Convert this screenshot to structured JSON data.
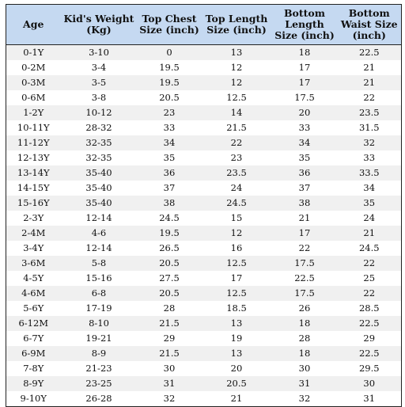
{
  "table": {
    "headers": [
      "Age",
      "Kid's Weight (Kg)",
      "Top Chest Size (inch)",
      "Top Length Size (inch)",
      "Bottom Length Size (inch)",
      "Bottom Waist Size (inch)"
    ],
    "rows": [
      [
        "0-1Y",
        "3-10",
        "0",
        "13",
        "18",
        "22.5"
      ],
      [
        "0-2M",
        "3-4",
        "19.5",
        "12",
        "17",
        "21"
      ],
      [
        "0-3M",
        "3-5",
        "19.5",
        "12",
        "17",
        "21"
      ],
      [
        "0-6M",
        "3-8",
        "20.5",
        "12.5",
        "17.5",
        "22"
      ],
      [
        "1-2Y",
        "10-12",
        "23",
        "14",
        "20",
        "23.5"
      ],
      [
        "10-11Y",
        "28-32",
        "33",
        "21.5",
        "33",
        "31.5"
      ],
      [
        "11-12Y",
        "32-35",
        "34",
        "22",
        "34",
        "32"
      ],
      [
        "12-13Y",
        "32-35",
        "35",
        "23",
        "35",
        "33"
      ],
      [
        "13-14Y",
        "35-40",
        "36",
        "23.5",
        "36",
        "33.5"
      ],
      [
        "14-15Y",
        "35-40",
        "37",
        "24",
        "37",
        "34"
      ],
      [
        "15-16Y",
        "35-40",
        "38",
        "24.5",
        "38",
        "35"
      ],
      [
        "2-3Y",
        "12-14",
        "24.5",
        "15",
        "21",
        "24"
      ],
      [
        "2-4M",
        "4-6",
        "19.5",
        "12",
        "17",
        "21"
      ],
      [
        "3-4Y",
        "12-14",
        "26.5",
        "16",
        "22",
        "24.5"
      ],
      [
        "3-6M",
        "5-8",
        "20.5",
        "12.5",
        "17.5",
        "22"
      ],
      [
        "4-5Y",
        "15-16",
        "27.5",
        "17",
        "22.5",
        "25"
      ],
      [
        "4-6M",
        "6-8",
        "20.5",
        "12.5",
        "17.5",
        "22"
      ],
      [
        "5-6Y",
        "17-19",
        "28",
        "18.5",
        "26",
        "28.5"
      ],
      [
        "6-12M",
        "8-10",
        "21.5",
        "13",
        "18",
        "22.5"
      ],
      [
        "6-7Y",
        "19-21",
        "29",
        "19",
        "28",
        "29"
      ],
      [
        "6-9M",
        "8-9",
        "21.5",
        "13",
        "18",
        "22.5"
      ],
      [
        "7-8Y",
        "21-23",
        "30",
        "20",
        "30",
        "29.5"
      ],
      [
        "8-9Y",
        "23-25",
        "31",
        "20.5",
        "31",
        "30"
      ],
      [
        "9-10Y",
        "26-28",
        "32",
        "21",
        "32",
        "31"
      ]
    ]
  },
  "colors": {
    "header_background": "#c5d9f1",
    "row_shade": "#f0f0f0",
    "row_plain": "#ffffff",
    "border": "#222222"
  }
}
